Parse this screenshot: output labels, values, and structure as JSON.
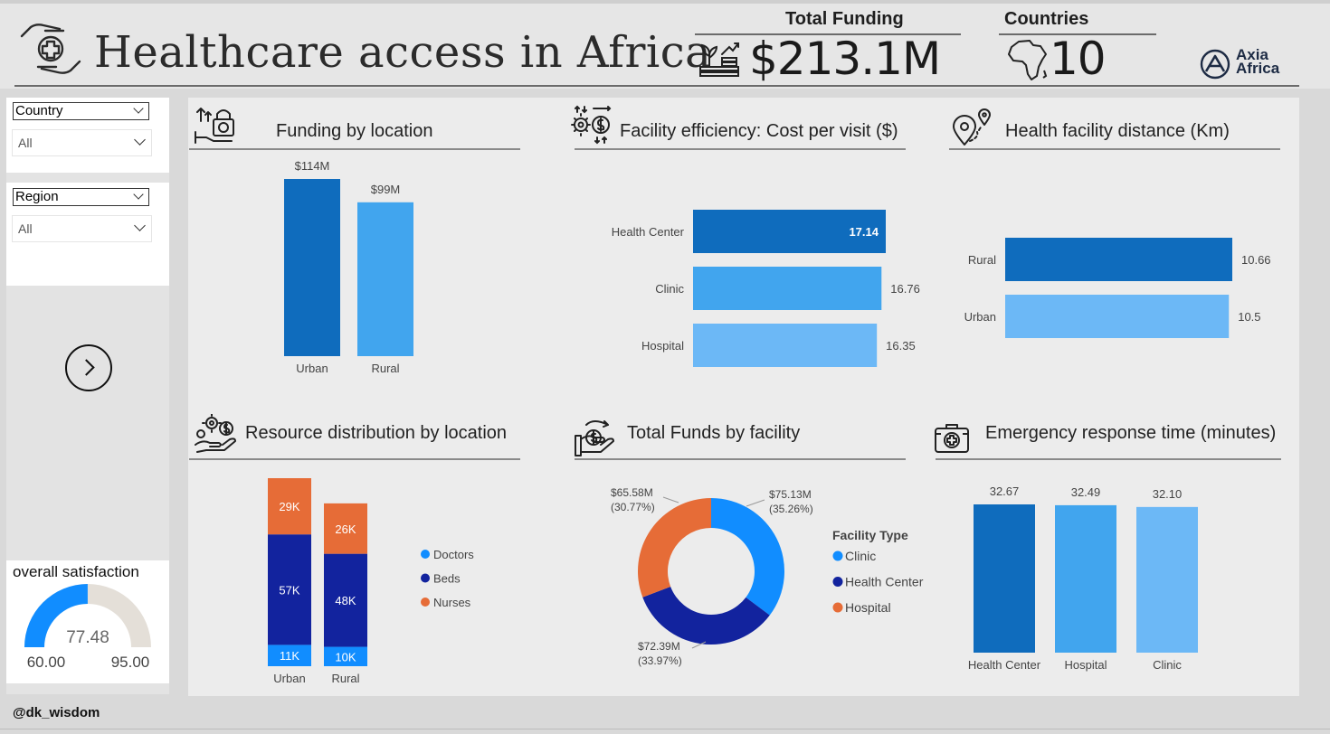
{
  "header": {
    "title": "Healthcare access  in Africa",
    "total_funding_label": "Total Funding",
    "total_funding_value": "$213.1M",
    "countries_label": "Countries",
    "countries_value": "10",
    "logo_line1": "Axia",
    "logo_line2": "Africa"
  },
  "slicers": {
    "country": {
      "label": "Country",
      "value": "All"
    },
    "region": {
      "label": "Region",
      "value": "All"
    }
  },
  "gauge": {
    "title": "overall satisfaction",
    "value": 77.48,
    "value_label": "77.48",
    "min": 60,
    "max": 95,
    "min_label": "60.00",
    "max_label": "95.00"
  },
  "footer": {
    "handle": "@dk_wisdom"
  },
  "colors": {
    "dark_blue": "#0f6cbd",
    "mid_blue": "#41a5ee",
    "light_blue": "#6cb8f6",
    "navy": "#12239e",
    "orange": "#e66c37",
    "bright_blue": "#118dff"
  },
  "icons": {
    "logo": "hands-cross-icon",
    "funding": "money-plant-icon",
    "countries": "africa-map-icon",
    "brand": "axia-logo-icon"
  },
  "chart_data": [
    {
      "id": "funding_by_location",
      "type": "bar",
      "title": "Funding by location",
      "icon": "lock-funding-icon",
      "categories": [
        "Urban",
        "Rural"
      ],
      "values": [
        114,
        99
      ],
      "data_labels": [
        "$114M",
        "$99M"
      ],
      "colors": [
        "#0f6cbd",
        "#41a5ee"
      ]
    },
    {
      "id": "facility_efficiency",
      "type": "bar",
      "orientation": "horizontal",
      "title": "Facility efficiency: Cost per visit ($)",
      "icon": "gear-dollar-icon",
      "categories": [
        "Health Center",
        "Clinic",
        "Hospital"
      ],
      "values": [
        17.14,
        16.76,
        16.35
      ],
      "data_labels": [
        "17.14",
        "16.76",
        "16.35"
      ],
      "colors": [
        "#0f6cbd",
        "#41a5ee",
        "#6cb8f6"
      ]
    },
    {
      "id": "facility_distance",
      "type": "bar",
      "orientation": "horizontal",
      "title": "Health facility distance  (Km)",
      "icon": "location-pin-icon",
      "categories": [
        "Rural",
        "Urban"
      ],
      "values": [
        10.66,
        10.5
      ],
      "data_labels": [
        "10.66",
        "10.5"
      ],
      "colors": [
        "#0f6cbd",
        "#6cb8f6"
      ]
    },
    {
      "id": "resource_distribution",
      "type": "bar",
      "stacked": true,
      "title": "Resource distribution by location",
      "icon": "hand-gear-icon",
      "categories": [
        "Urban",
        "Rural"
      ],
      "series": [
        {
          "name": "Doctors",
          "values": [
            11,
            10
          ],
          "labels": [
            "11K",
            "10K"
          ],
          "color": "#118dff"
        },
        {
          "name": "Beds",
          "values": [
            57,
            48
          ],
          "labels": [
            "57K",
            "48K"
          ],
          "color": "#12239e"
        },
        {
          "name": "Nurses",
          "values": [
            29,
            26
          ],
          "labels": [
            "29K",
            "26K"
          ],
          "color": "#e66c37"
        }
      ],
      "legend_position": "right"
    },
    {
      "id": "total_funds_by_facility",
      "type": "pie",
      "donut": true,
      "title": "Total Funds by facility",
      "icon": "hand-money-icon",
      "legend_title": "Facility Type",
      "slices": [
        {
          "name": "Clinic",
          "value": 75.13,
          "label_value": "$75.13M",
          "label_pct": "(35.26%)",
          "color": "#118dff"
        },
        {
          "name": "Health Center",
          "value": 72.39,
          "label_value": "$72.39M",
          "label_pct": "(33.97%)",
          "color": "#12239e"
        },
        {
          "name": "Hospital",
          "value": 65.58,
          "label_value": "$65.58M",
          "label_pct": "(30.77%)",
          "color": "#e66c37"
        }
      ],
      "legend_position": "right"
    },
    {
      "id": "emergency_response",
      "type": "bar",
      "title": "Emergency response time (minutes)",
      "icon": "first-aid-kit-icon",
      "categories": [
        "Health Center",
        "Hospital",
        "Clinic"
      ],
      "values": [
        32.67,
        32.49,
        32.1
      ],
      "data_labels": [
        "32.67",
        "32.49",
        "32.10"
      ],
      "colors": [
        "#0f6cbd",
        "#41a5ee",
        "#6cb8f6"
      ]
    }
  ]
}
